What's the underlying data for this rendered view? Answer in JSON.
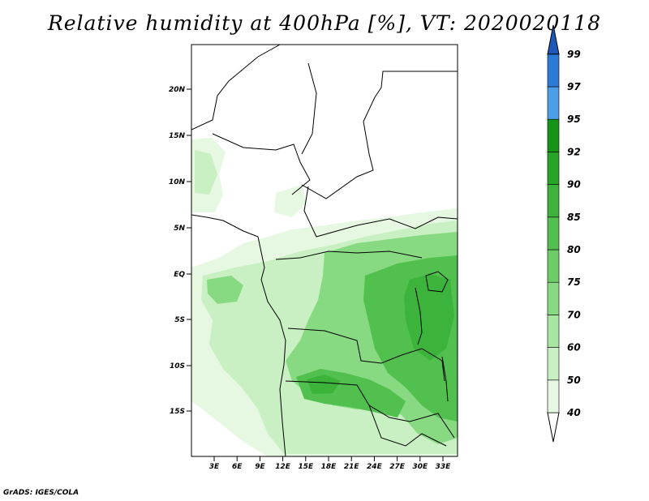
{
  "title": "Relative humidity at 400hPa [%], VT: 2020020118",
  "credit": "GrADS: IGES/COLA",
  "map": {
    "variable": "Relative humidity",
    "level": "400hPa",
    "unit": "%",
    "valid_time": "2020020118",
    "lon_range": [
      0,
      35
    ],
    "lat_range": [
      -20,
      25
    ],
    "lat_ticks": [
      "20N",
      "15N",
      "10N",
      "5N",
      "EQ",
      "5S",
      "10S",
      "15S"
    ],
    "lon_ticks": [
      "3E",
      "6E",
      "9E",
      "12E",
      "15E",
      "18E",
      "21E",
      "24E",
      "27E",
      "30E",
      "33E"
    ]
  },
  "colorbar": {
    "levels": [
      "40",
      "50",
      "60",
      "70",
      "75",
      "80",
      "85",
      "90",
      "92",
      "95",
      "97",
      "99"
    ],
    "colors": [
      "#ffffff",
      "#e6f8e2",
      "#c8f0c2",
      "#a6e6a0",
      "#88da82",
      "#6ccd66",
      "#52c04e",
      "#3cb33a",
      "#27a525",
      "#169416",
      "#4d9ee8",
      "#2c7ad8",
      "#1b58b8"
    ]
  },
  "colors": {
    "background": "#ffffff",
    "border": "#000000",
    "rh_light": "#e6f8e2",
    "rh_mid": "#88da82",
    "rh_dark": "#3cb33a"
  }
}
